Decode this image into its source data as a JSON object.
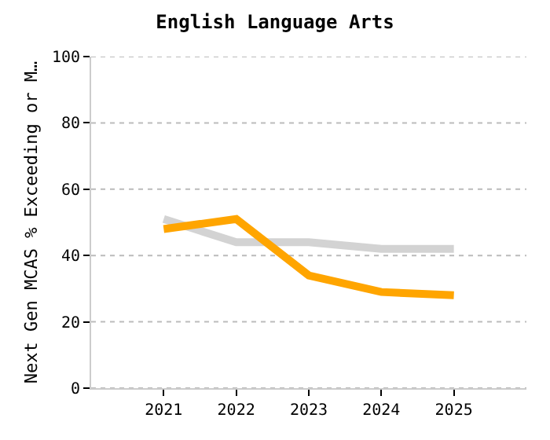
{
  "chart_data": {
    "type": "line",
    "title": "English Language Arts",
    "ylabel": "Next Gen MCAS % Exceeding or M…",
    "x": [
      2021,
      2022,
      2023,
      2024,
      2025
    ],
    "series": [
      {
        "color": "#d3d3d3",
        "values": [
          51,
          44,
          44,
          42,
          42
        ]
      },
      {
        "color": "#ffa500",
        "values": [
          48,
          51,
          34,
          29,
          28
        ]
      }
    ],
    "xlim": [
      2020,
      2026
    ],
    "xticks": [
      2021,
      2022,
      2023,
      2024,
      2025
    ],
    "ylim": [
      0,
      100
    ],
    "yticks": [
      0,
      20,
      40,
      60,
      80,
      100
    ],
    "grid": "y",
    "marker": "none",
    "line_style": "solid"
  }
}
